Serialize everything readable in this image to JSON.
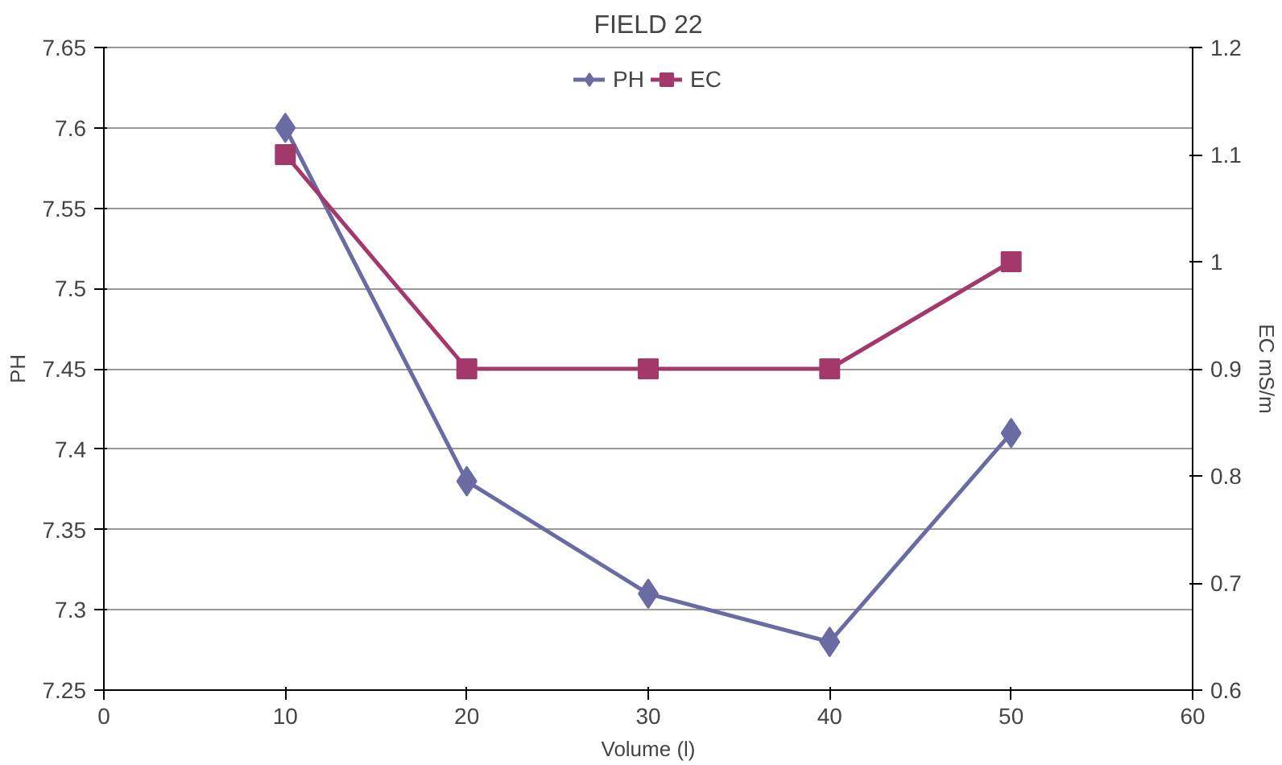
{
  "chart_data": {
    "type": "line",
    "title": "FIELD 22",
    "xlabel": "Volume (l)",
    "ylabel": "PH",
    "y2label": "EC mS/m",
    "x": [
      10,
      20,
      30,
      40,
      50
    ],
    "series": [
      {
        "name": "PH",
        "color": "#6b6ba3",
        "marker": "diamond",
        "values": [
          7.6,
          7.38,
          7.31,
          7.28,
          7.41
        ]
      },
      {
        "name": "EC",
        "color": "#a3386a",
        "marker": "square",
        "axis": "y2",
        "values": [
          1.1,
          0.9,
          0.9,
          0.9,
          1
        ]
      }
    ],
    "xlim": [
      0,
      60
    ],
    "xticks": [
      0,
      10,
      20,
      30,
      40,
      50,
      60
    ],
    "ylim": [
      7.25,
      7.65
    ],
    "yticks": [
      7.25,
      7.3,
      7.35,
      7.4,
      7.45,
      7.5,
      7.55,
      7.6,
      7.65
    ],
    "y2lim": [
      0.6,
      1.2
    ],
    "y2ticks": [
      0.6,
      0.7,
      0.8,
      0.9,
      1,
      1.1,
      1.2
    ],
    "grid": "y",
    "legend": "top"
  }
}
